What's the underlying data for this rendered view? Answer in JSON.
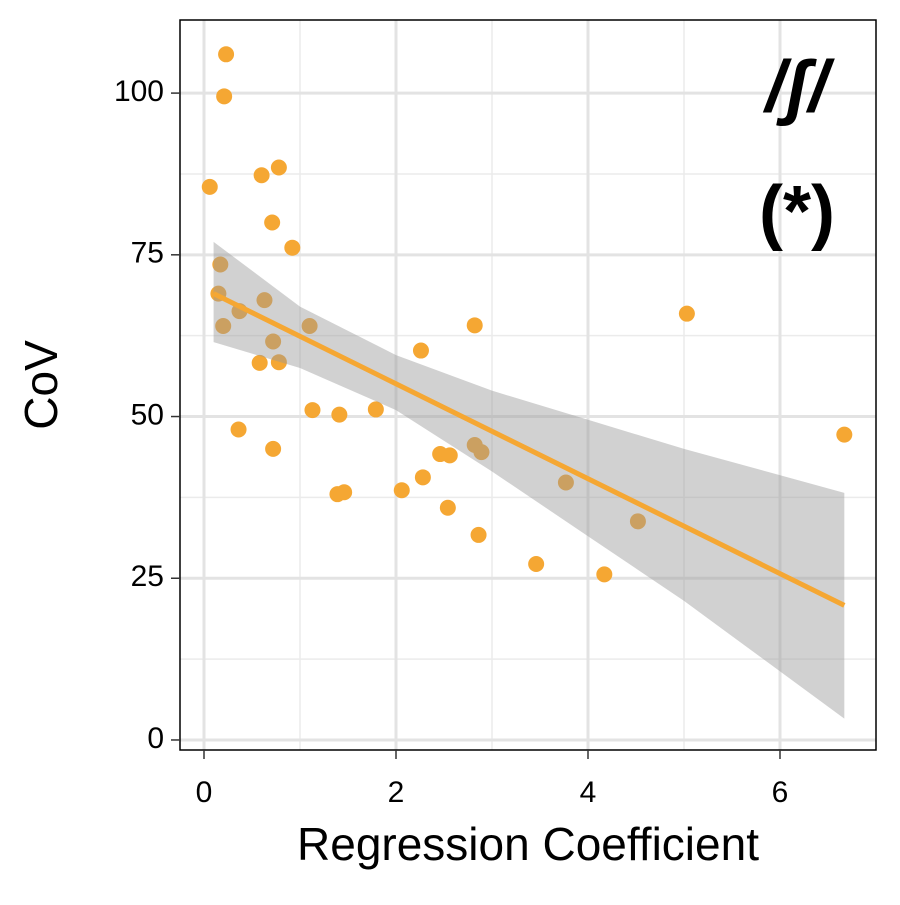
{
  "chart_data": {
    "type": "scatter",
    "x_label": "Regression Coefficient",
    "y_label": "CoV",
    "annotations": [
      "/ʃ/",
      "(*)"
    ],
    "color": "#f5a733",
    "x": [
      0.06,
      0.23,
      0.21,
      0.17,
      0.15,
      0.2,
      0.37,
      0.36,
      0.58,
      0.6,
      0.63,
      0.71,
      0.72,
      0.72,
      0.78,
      0.78,
      0.92,
      1.1,
      1.13,
      1.41,
      1.39,
      1.46,
      1.79,
      2.06,
      2.26,
      2.28,
      2.46,
      2.56,
      2.54,
      2.82,
      2.82,
      2.86,
      2.89,
      3.46,
      3.77,
      4.17,
      4.52,
      5.03,
      6.67
    ],
    "values": [
      85.5,
      106,
      99.5,
      73.5,
      69,
      64,
      66.3,
      48,
      58.3,
      87.3,
      68,
      80,
      61.6,
      45,
      58.4,
      88.5,
      76.1,
      64,
      51,
      50.3,
      38,
      38.3,
      51.1,
      38.6,
      60.2,
      40.6,
      44.2,
      44,
      35.9,
      64.1,
      45.6,
      31.7,
      44.5,
      27.2,
      39.8,
      25.6,
      33.8,
      65.9,
      47.2
    ],
    "fit": {
      "x": [
        0.1,
        6.67
      ],
      "y": [
        69,
        20.8
      ]
    },
    "band": {
      "x": [
        0.1,
        1,
        2,
        3,
        4,
        5,
        6.67
      ],
      "lower": [
        61.5,
        57.5,
        51,
        41.5,
        31.5,
        21.5,
        3.3
      ],
      "upper": [
        77,
        67,
        59.5,
        54,
        49.5,
        45,
        38.2
      ]
    },
    "xlim": [
      -0.25,
      7.0
    ],
    "ylim": [
      -1.55,
      111.3
    ],
    "xticks": [
      0,
      2,
      4,
      6
    ],
    "yticks": [
      0,
      25,
      50,
      75,
      100
    ],
    "xminor": [
      1,
      3,
      5
    ],
    "yminor": [
      12.5,
      37.5,
      62.5,
      87.5
    ],
    "grid": true
  }
}
